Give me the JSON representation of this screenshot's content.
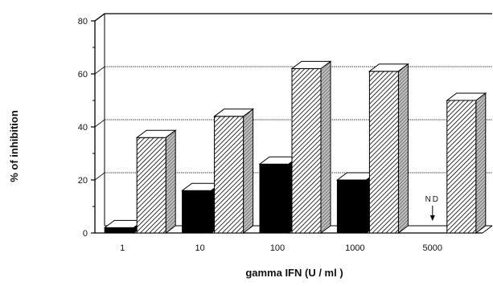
{
  "chart_data": {
    "type": "bar",
    "style": "3d",
    "categories": [
      "1",
      "10",
      "100",
      "1000",
      "5000"
    ],
    "series": [
      {
        "fill": "solid",
        "color": "#000000",
        "values": [
          2,
          16,
          26,
          20,
          null
        ]
      },
      {
        "fill": "hatched",
        "color": "#000000",
        "values": [
          36,
          44,
          62,
          61,
          50
        ]
      }
    ],
    "xlabel": "gamma IFN (U / ml )",
    "ylabel": "% of inhibition",
    "ylim": [
      0,
      80
    ],
    "yticks": [
      "0",
      "20",
      "40",
      "60",
      "80"
    ],
    "grid": true,
    "annotations": [
      {
        "text": "ND",
        "category": "5000",
        "arrow": "down"
      }
    ]
  }
}
